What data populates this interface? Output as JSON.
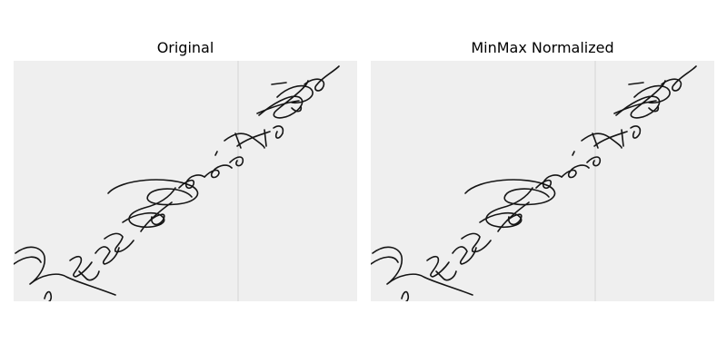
{
  "panels": [
    {
      "title": "Original"
    },
    {
      "title": "MinMax Normalized"
    }
  ]
}
